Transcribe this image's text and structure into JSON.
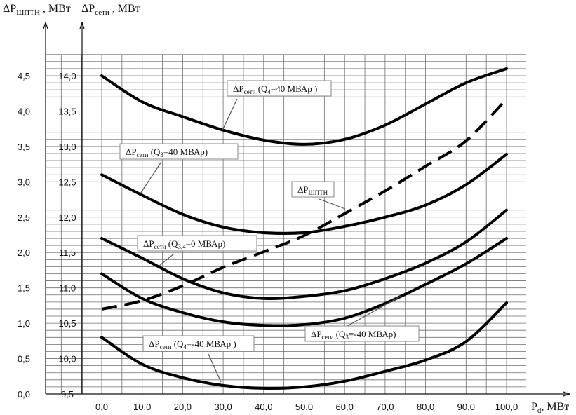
{
  "chart_data": {
    "type": "line",
    "title": "",
    "xlabel": {
      "base": "P",
      "sub": "d",
      "unit": ", МВт"
    },
    "ylabel_left": {
      "base": "ΔP",
      "sub": "ШПТН",
      "unit": " , МВт"
    },
    "ylabel_right": {
      "base": "ΔP",
      "sub": "сети",
      "unit": " , МВт"
    },
    "x_ticks": [
      "0,0",
      "10,0",
      "20,0",
      "30,0",
      "40,0",
      "50,0",
      "60,0",
      "70,0",
      "80,0",
      "90,0",
      "100,0"
    ],
    "y_left_ticks": [
      "0,0",
      "0,5",
      "1,0",
      "1,5",
      "2,0",
      "2,5",
      "3,0",
      "3,5",
      "4,0",
      "4,5"
    ],
    "y_right_ticks": [
      "9,5",
      "10,0",
      "10,5",
      "11,0",
      "11,5",
      "12,0",
      "12,5",
      "13,0",
      "13,5",
      "14,0"
    ],
    "xlim": [
      0,
      100
    ],
    "ylim_right": [
      9.5,
      14.0
    ],
    "ylim_left": [
      0.0,
      4.5
    ],
    "grid": true,
    "x": [
      0,
      10,
      20,
      30,
      40,
      50,
      60,
      70,
      80,
      90,
      100
    ],
    "series": [
      {
        "name": "ΔPсети (Q4=40 МВАр)",
        "label": {
          "base": "ΔP",
          "sub": "сети",
          "rest": " (Q",
          "sub2": "4",
          "rest2": "=40 МВАр )"
        },
        "style": "solid",
        "axis": "right",
        "values": [
          14.0,
          13.63,
          13.42,
          13.23,
          13.09,
          13.03,
          13.1,
          13.3,
          13.6,
          13.9,
          14.1
        ]
      },
      {
        "name": "ΔPсети (Q3=40 МВАр)",
        "label": {
          "base": "ΔP",
          "sub": "сети",
          "rest": " (Q",
          "sub2": "3",
          "rest2": "=40 МВАр)"
        },
        "style": "solid",
        "axis": "right",
        "values": [
          12.6,
          12.31,
          12.04,
          11.86,
          11.78,
          11.78,
          11.87,
          12.0,
          12.17,
          12.46,
          12.89
        ]
      },
      {
        "name": "ΔPшптн",
        "label": {
          "base": "ΔP",
          "sub": "ШПТН",
          "rest": "",
          "sub2": "",
          "rest2": ""
        },
        "style": "dashed",
        "axis": "left",
        "values": [
          1.2,
          1.32,
          1.53,
          1.79,
          2.01,
          2.24,
          2.55,
          2.87,
          3.22,
          3.58,
          4.17
        ]
      },
      {
        "name": "ΔPсети (Q3,4=0 МВАр)",
        "label": {
          "base": "ΔP",
          "sub": "сети",
          "rest": " (Q",
          "sub2": "3,4",
          "rest2": "=0 МВАр)"
        },
        "style": "solid",
        "axis": "right",
        "values": [
          11.7,
          11.42,
          11.13,
          10.93,
          10.85,
          10.88,
          10.96,
          11.13,
          11.35,
          11.65,
          12.1
        ]
      },
      {
        "name": "ΔPсети (Q3=-40 МВАр)",
        "label": {
          "base": "ΔP",
          "sub": "сети",
          "rest": " (Q",
          "sub2": "3",
          "rest2": "=-40 МВАр)"
        },
        "style": "solid",
        "axis": "right",
        "values": [
          11.2,
          10.85,
          10.65,
          10.52,
          10.47,
          10.48,
          10.57,
          10.78,
          11.05,
          11.34,
          11.7
        ]
      },
      {
        "name": "ΔPсети (Q4=-40 МВАр)",
        "label": {
          "base": "ΔP",
          "sub": "сети",
          "rest": " (Q",
          "sub2": "4",
          "rest2": "=-40 МВАр )"
        },
        "style": "solid",
        "axis": "right",
        "values": [
          10.3,
          9.92,
          9.73,
          9.62,
          9.58,
          9.6,
          9.68,
          9.82,
          9.98,
          10.24,
          10.79
        ]
      }
    ]
  }
}
